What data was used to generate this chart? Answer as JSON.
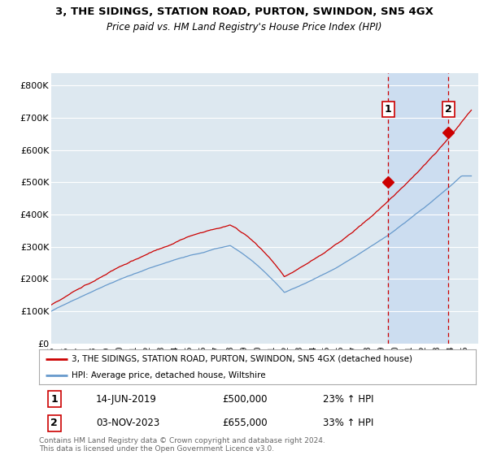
{
  "title": "3, THE SIDINGS, STATION ROAD, PURTON, SWINDON, SN5 4GX",
  "subtitle": "Price paid vs. HM Land Registry's House Price Index (HPI)",
  "ylabel_ticks": [
    "£0",
    "£100K",
    "£200K",
    "£300K",
    "£400K",
    "£500K",
    "£600K",
    "£700K",
    "£800K"
  ],
  "ytick_values": [
    0,
    100000,
    200000,
    300000,
    400000,
    500000,
    600000,
    700000,
    800000
  ],
  "ylim": [
    0,
    840000
  ],
  "xlim_start": 1995.0,
  "xlim_end": 2026.0,
  "background_color": "#dde8f0",
  "shaded_band_color": "#ccddf0",
  "grid_color": "#ffffff",
  "red_line_color": "#cc0000",
  "blue_line_color": "#6699cc",
  "transaction1_x": 2019.45,
  "transaction1_y": 500000,
  "transaction1_label": "1",
  "transaction2_x": 2023.84,
  "transaction2_y": 655000,
  "transaction2_label": "2",
  "dashed_line_color": "#cc0000",
  "legend_line1": "3, THE SIDINGS, STATION ROAD, PURTON, SWINDON, SN5 4GX (detached house)",
  "legend_line2": "HPI: Average price, detached house, Wiltshire",
  "table_row1_num": "1",
  "table_row1_date": "14-JUN-2019",
  "table_row1_price": "£500,000",
  "table_row1_hpi": "23% ↑ HPI",
  "table_row2_num": "2",
  "table_row2_date": "03-NOV-2023",
  "table_row2_price": "£655,000",
  "table_row2_hpi": "33% ↑ HPI",
  "footer": "Contains HM Land Registry data © Crown copyright and database right 2024.\nThis data is licensed under the Open Government Licence v3.0."
}
